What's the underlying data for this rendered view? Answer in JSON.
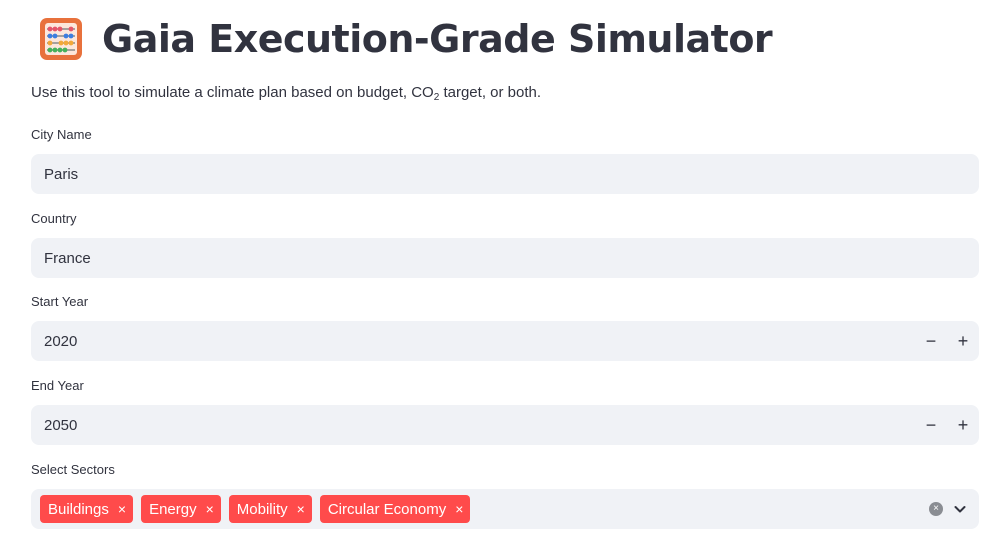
{
  "header": {
    "title": "Gaia Execution-Grade Simulator",
    "icon": "abacus-icon"
  },
  "description": {
    "before": "Use this tool to simulate a climate plan based on budget, CO",
    "sub": "2",
    "after": " target, or both."
  },
  "fields": {
    "city": {
      "label": "City Name",
      "value": "Paris"
    },
    "country": {
      "label": "Country",
      "value": "France"
    },
    "start_year": {
      "label": "Start Year",
      "value": "2020",
      "minus": "−",
      "plus": "+"
    },
    "end_year": {
      "label": "End Year",
      "value": "2050",
      "minus": "−",
      "plus": "+"
    },
    "sectors": {
      "label": "Select Sectors",
      "selected": [
        {
          "label": "Buildings",
          "remove": "×"
        },
        {
          "label": "Energy",
          "remove": "×"
        },
        {
          "label": "Mobility",
          "remove": "×"
        },
        {
          "label": "Circular Economy",
          "remove": "×"
        }
      ],
      "clear": "×"
    }
  },
  "colors": {
    "accent": "#ff4b4b",
    "input_bg": "#f0f2f6",
    "text": "#31333f"
  }
}
